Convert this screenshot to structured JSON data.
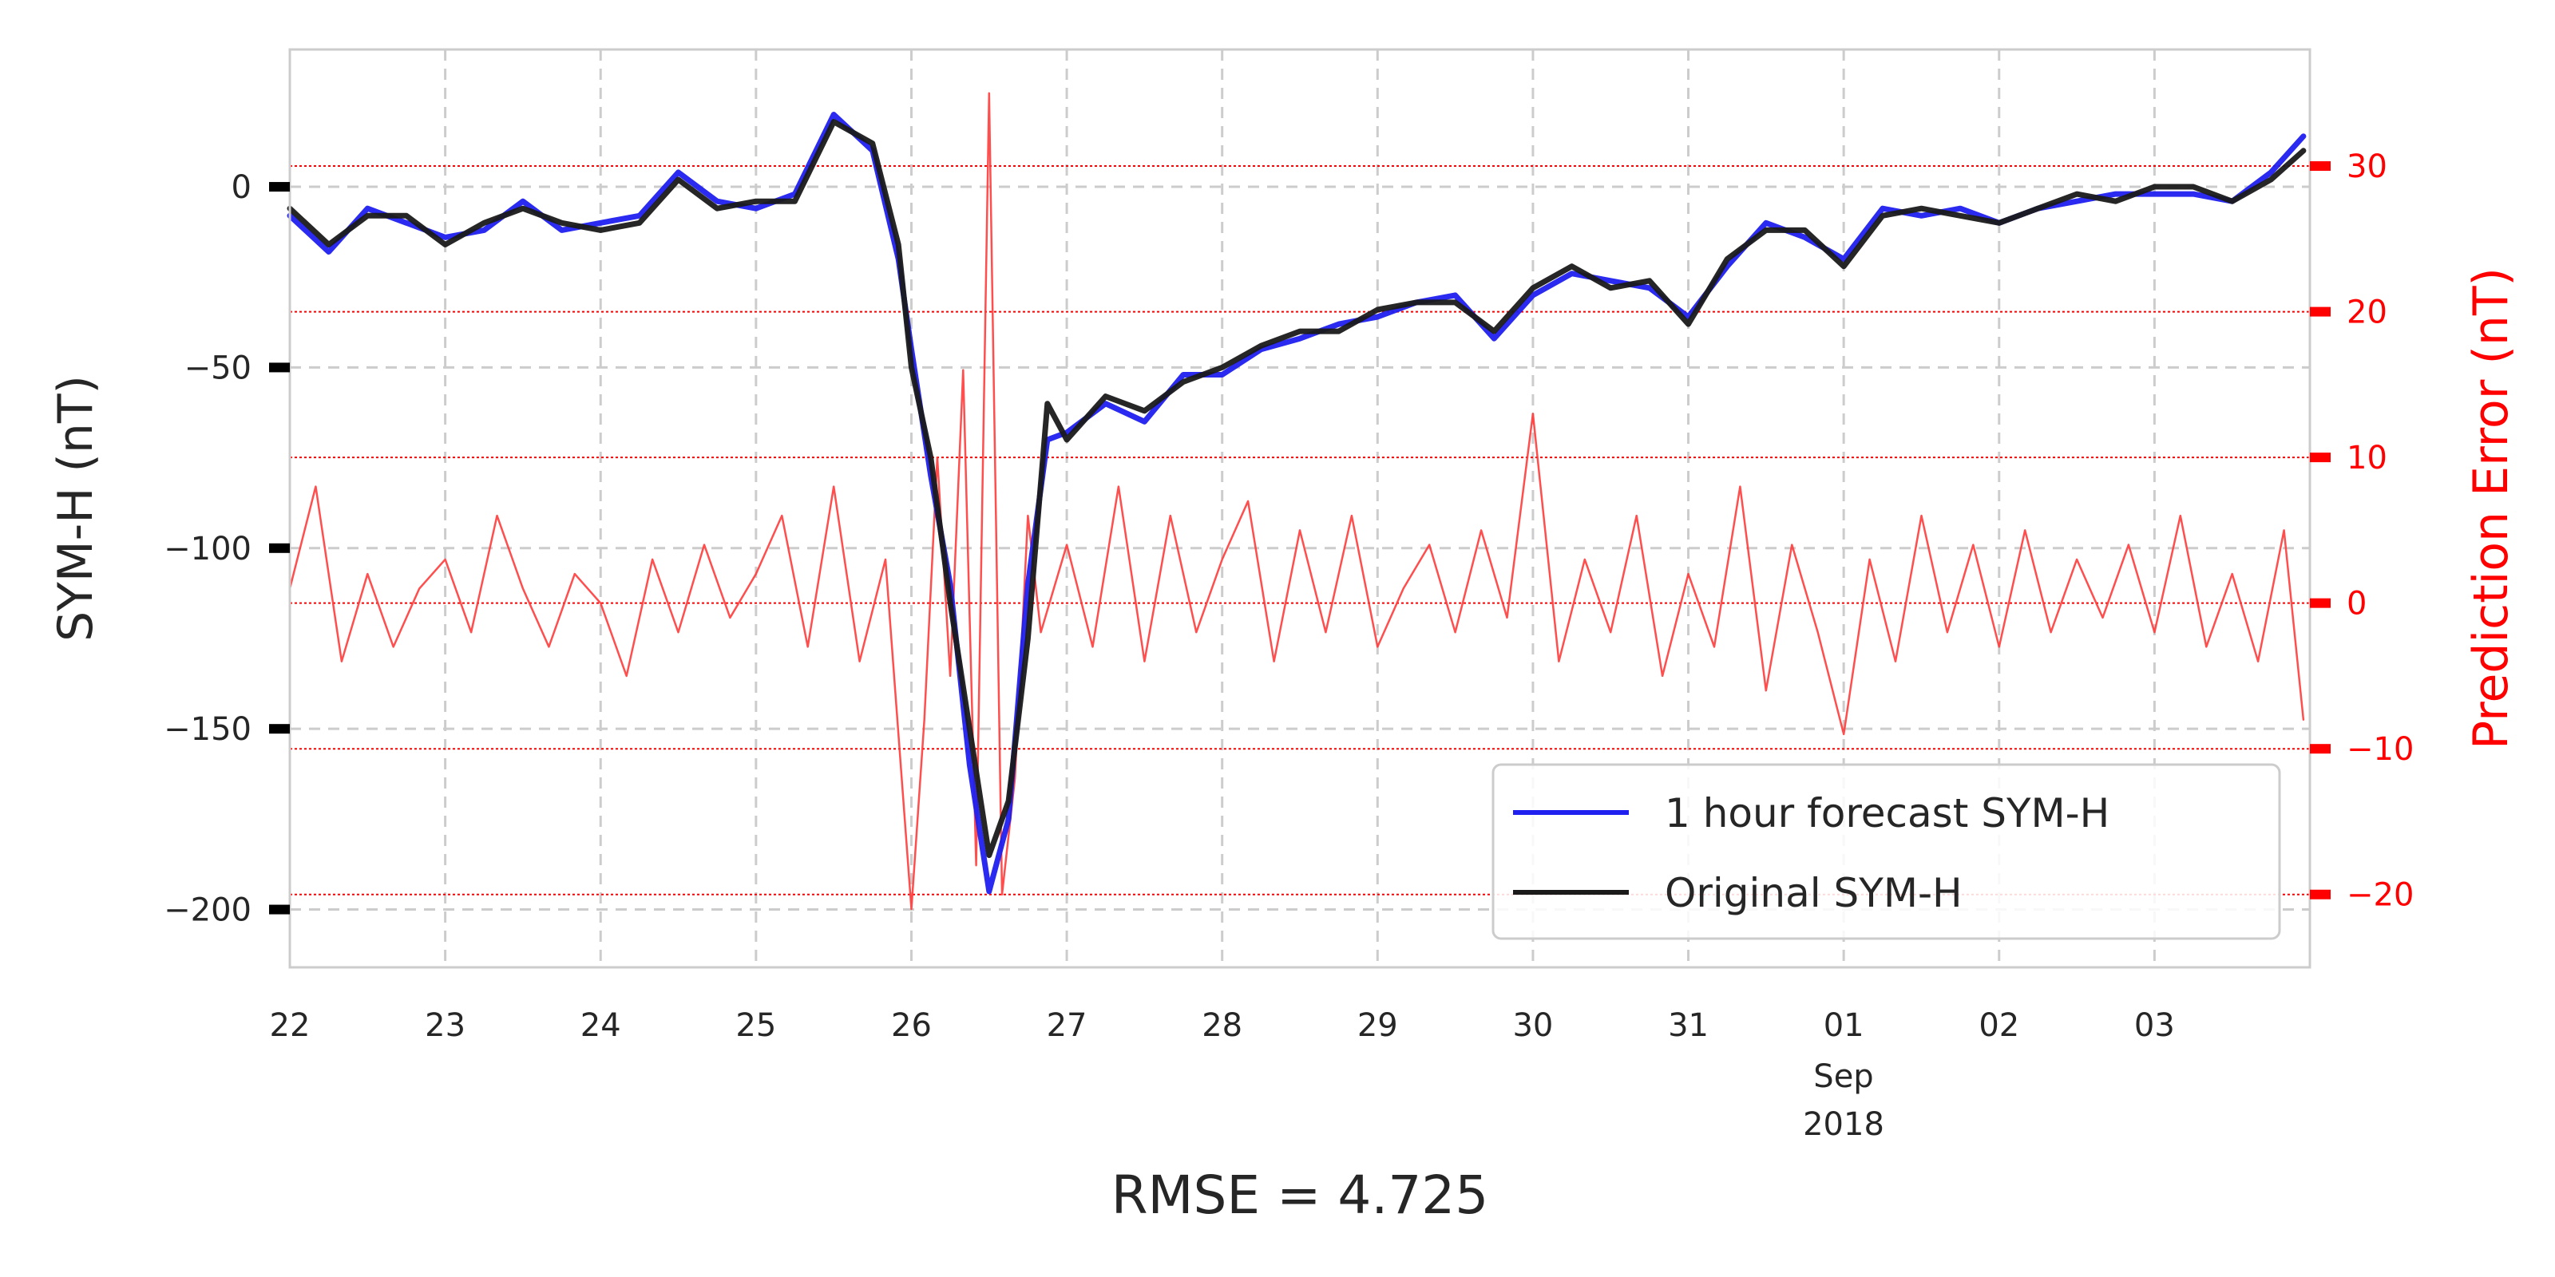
{
  "chart_data": {
    "type": "line",
    "xlabel": "RMSE = 4.725",
    "ylabel": "SYM-H (nT)",
    "y2label": "Prediction Error (nT)",
    "xlim": [
      "2018-08-22",
      "2018-09-04"
    ],
    "ylim": [
      -216,
      38
    ],
    "y2lim": [
      -25,
      38
    ],
    "grid": true,
    "legend_position": "lower-right",
    "x_ticks": [
      {
        "date": "2018-08-22",
        "label": "22"
      },
      {
        "date": "2018-08-23",
        "label": "23"
      },
      {
        "date": "2018-08-24",
        "label": "24"
      },
      {
        "date": "2018-08-25",
        "label": "25"
      },
      {
        "date": "2018-08-26",
        "label": "26"
      },
      {
        "date": "2018-08-27",
        "label": "27"
      },
      {
        "date": "2018-08-28",
        "label": "28"
      },
      {
        "date": "2018-08-29",
        "label": "29"
      },
      {
        "date": "2018-08-30",
        "label": "30"
      },
      {
        "date": "2018-08-31",
        "label": "31"
      },
      {
        "date": "2018-09-01",
        "label": "01"
      },
      {
        "date": "2018-09-02",
        "label": "02"
      },
      {
        "date": "2018-09-03",
        "label": "03"
      }
    ],
    "x_sublabel_month": "Sep",
    "x_sublabel_year": "2018",
    "y_ticks": [
      0,
      -50,
      -100,
      -150,
      -200
    ],
    "y2_ticks": [
      30,
      20,
      10,
      0,
      -10,
      -20
    ],
    "series": [
      {
        "name": "1 hour forecast SYM-H",
        "color": "#1f1fef",
        "x": [
          "2018-08-22T00:00",
          "2018-08-22T06:00",
          "2018-08-22T12:00",
          "2018-08-22T18:00",
          "2018-08-23T00:00",
          "2018-08-23T06:00",
          "2018-08-23T12:00",
          "2018-08-23T18:00",
          "2018-08-24T00:00",
          "2018-08-24T06:00",
          "2018-08-24T12:00",
          "2018-08-24T18:00",
          "2018-08-25T00:00",
          "2018-08-25T06:00",
          "2018-08-25T12:00",
          "2018-08-25T18:00",
          "2018-08-25T22:00",
          "2018-08-26T00:00",
          "2018-08-26T03:00",
          "2018-08-26T06:00",
          "2018-08-26T09:00",
          "2018-08-26T12:00",
          "2018-08-26T15:00",
          "2018-08-26T18:00",
          "2018-08-26T21:00",
          "2018-08-27T00:00",
          "2018-08-27T06:00",
          "2018-08-27T12:00",
          "2018-08-27T18:00",
          "2018-08-28T00:00",
          "2018-08-28T06:00",
          "2018-08-28T12:00",
          "2018-08-28T18:00",
          "2018-08-29T00:00",
          "2018-08-29T06:00",
          "2018-08-29T12:00",
          "2018-08-29T18:00",
          "2018-08-30T00:00",
          "2018-08-30T06:00",
          "2018-08-30T12:00",
          "2018-08-30T18:00",
          "2018-08-31T00:00",
          "2018-08-31T06:00",
          "2018-08-31T12:00",
          "2018-08-31T18:00",
          "2018-09-01T00:00",
          "2018-09-01T06:00",
          "2018-09-01T12:00",
          "2018-09-01T18:00",
          "2018-09-02T00:00",
          "2018-09-02T06:00",
          "2018-09-02T12:00",
          "2018-09-02T18:00",
          "2018-09-03T00:00",
          "2018-09-03T06:00",
          "2018-09-03T12:00",
          "2018-09-03T18:00",
          "2018-09-03T23:00"
        ],
        "y": [
          -8,
          -18,
          -6,
          -10,
          -14,
          -12,
          -4,
          -12,
          -10,
          -8,
          4,
          -4,
          -6,
          -2,
          20,
          10,
          -20,
          -45,
          -80,
          -110,
          -160,
          -195,
          -175,
          -110,
          -70,
          -68,
          -60,
          -65,
          -52,
          -52,
          -45,
          -42,
          -38,
          -36,
          -32,
          -30,
          -42,
          -30,
          -24,
          -26,
          -28,
          -36,
          -22,
          -10,
          -14,
          -20,
          -6,
          -8,
          -6,
          -10,
          -6,
          -4,
          -2,
          -2,
          -2,
          -4,
          4,
          14
        ]
      },
      {
        "name": "Original SYM-H",
        "color": "#1a1a1a",
        "x": [
          "2018-08-22T00:00",
          "2018-08-22T06:00",
          "2018-08-22T12:00",
          "2018-08-22T18:00",
          "2018-08-23T00:00",
          "2018-08-23T06:00",
          "2018-08-23T12:00",
          "2018-08-23T18:00",
          "2018-08-24T00:00",
          "2018-08-24T06:00",
          "2018-08-24T12:00",
          "2018-08-24T18:00",
          "2018-08-25T00:00",
          "2018-08-25T06:00",
          "2018-08-25T12:00",
          "2018-08-25T18:00",
          "2018-08-25T22:00",
          "2018-08-26T00:00",
          "2018-08-26T03:00",
          "2018-08-26T06:00",
          "2018-08-26T09:00",
          "2018-08-26T12:00",
          "2018-08-26T15:00",
          "2018-08-26T18:00",
          "2018-08-26T21:00",
          "2018-08-27T00:00",
          "2018-08-27T06:00",
          "2018-08-27T12:00",
          "2018-08-27T18:00",
          "2018-08-28T00:00",
          "2018-08-28T06:00",
          "2018-08-28T12:00",
          "2018-08-28T18:00",
          "2018-08-29T00:00",
          "2018-08-29T06:00",
          "2018-08-29T12:00",
          "2018-08-29T18:00",
          "2018-08-30T00:00",
          "2018-08-30T06:00",
          "2018-08-30T12:00",
          "2018-08-30T18:00",
          "2018-08-31T00:00",
          "2018-08-31T06:00",
          "2018-08-31T12:00",
          "2018-08-31T18:00",
          "2018-09-01T00:00",
          "2018-09-01T06:00",
          "2018-09-01T12:00",
          "2018-09-01T18:00",
          "2018-09-02T00:00",
          "2018-09-02T06:00",
          "2018-09-02T12:00",
          "2018-09-02T18:00",
          "2018-09-03T00:00",
          "2018-09-03T06:00",
          "2018-09-03T12:00",
          "2018-09-03T18:00",
          "2018-09-03T23:00"
        ],
        "y": [
          -6,
          -16,
          -8,
          -8,
          -16,
          -10,
          -6,
          -10,
          -12,
          -10,
          2,
          -6,
          -4,
          -4,
          18,
          12,
          -16,
          -50,
          -75,
          -115,
          -150,
          -185,
          -170,
          -125,
          -60,
          -70,
          -58,
          -62,
          -54,
          -50,
          -44,
          -40,
          -40,
          -34,
          -32,
          -32,
          -40,
          -28,
          -22,
          -28,
          -26,
          -38,
          -20,
          -12,
          -12,
          -22,
          -8,
          -6,
          -8,
          -10,
          -6,
          -2,
          -4,
          0,
          0,
          -4,
          2,
          10
        ]
      },
      {
        "name": "Prediction Error",
        "color": "#ff3b3b",
        "axis": "right",
        "x": [
          "2018-08-22T00:00",
          "2018-08-22T04:00",
          "2018-08-22T08:00",
          "2018-08-22T12:00",
          "2018-08-22T16:00",
          "2018-08-22T20:00",
          "2018-08-23T00:00",
          "2018-08-23T04:00",
          "2018-08-23T08:00",
          "2018-08-23T12:00",
          "2018-08-23T16:00",
          "2018-08-23T20:00",
          "2018-08-24T00:00",
          "2018-08-24T04:00",
          "2018-08-24T08:00",
          "2018-08-24T12:00",
          "2018-08-24T16:00",
          "2018-08-24T20:00",
          "2018-08-25T00:00",
          "2018-08-25T04:00",
          "2018-08-25T08:00",
          "2018-08-25T12:00",
          "2018-08-25T16:00",
          "2018-08-25T20:00",
          "2018-08-26T00:00",
          "2018-08-26T02:00",
          "2018-08-26T04:00",
          "2018-08-26T06:00",
          "2018-08-26T08:00",
          "2018-08-26T10:00",
          "2018-08-26T12:00",
          "2018-08-26T14:00",
          "2018-08-26T16:00",
          "2018-08-26T18:00",
          "2018-08-26T20:00",
          "2018-08-27T00:00",
          "2018-08-27T04:00",
          "2018-08-27T08:00",
          "2018-08-27T12:00",
          "2018-08-27T16:00",
          "2018-08-27T20:00",
          "2018-08-28T00:00",
          "2018-08-28T04:00",
          "2018-08-28T08:00",
          "2018-08-28T12:00",
          "2018-08-28T16:00",
          "2018-08-28T20:00",
          "2018-08-29T00:00",
          "2018-08-29T04:00",
          "2018-08-29T08:00",
          "2018-08-29T12:00",
          "2018-08-29T16:00",
          "2018-08-29T20:00",
          "2018-08-30T00:00",
          "2018-08-30T04:00",
          "2018-08-30T08:00",
          "2018-08-30T12:00",
          "2018-08-30T16:00",
          "2018-08-30T20:00",
          "2018-08-31T00:00",
          "2018-08-31T04:00",
          "2018-08-31T08:00",
          "2018-08-31T12:00",
          "2018-08-31T16:00",
          "2018-08-31T20:00",
          "2018-09-01T00:00",
          "2018-09-01T04:00",
          "2018-09-01T08:00",
          "2018-09-01T12:00",
          "2018-09-01T16:00",
          "2018-09-01T20:00",
          "2018-09-02T00:00",
          "2018-09-02T04:00",
          "2018-09-02T08:00",
          "2018-09-02T12:00",
          "2018-09-02T16:00",
          "2018-09-02T20:00",
          "2018-09-03T00:00",
          "2018-09-03T04:00",
          "2018-09-03T08:00",
          "2018-09-03T12:00",
          "2018-09-03T16:00",
          "2018-09-03T20:00",
          "2018-09-03T23:00"
        ],
        "y": [
          1,
          8,
          -4,
          2,
          -3,
          1,
          3,
          -2,
          6,
          1,
          -3,
          2,
          0,
          -5,
          3,
          -2,
          4,
          -1,
          2,
          6,
          -3,
          8,
          -4,
          3,
          -21,
          -8,
          10,
          -5,
          16,
          -18,
          35,
          -20,
          -12,
          6,
          -2,
          4,
          -3,
          8,
          -4,
          6,
          -2,
          3,
          7,
          -4,
          5,
          -2,
          6,
          -3,
          1,
          4,
          -2,
          5,
          -1,
          13,
          -4,
          3,
          -2,
          6,
          -5,
          2,
          -3,
          8,
          -6,
          4,
          -2,
          -9,
          3,
          -4,
          6,
          -2,
          4,
          -3,
          5,
          -2,
          3,
          -1,
          4,
          -2,
          6,
          -3,
          2,
          -4,
          5,
          -8
        ]
      }
    ]
  }
}
